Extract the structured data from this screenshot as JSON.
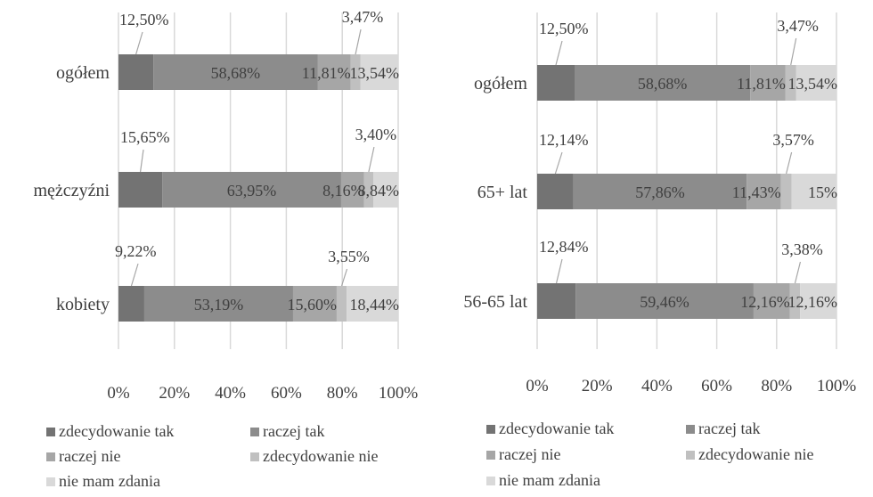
{
  "palette": {
    "zdecydowanie_tak": "#737373",
    "raczej_tak": "#8c8c8c",
    "raczej_nie": "#a6a6a6",
    "zdecydowanie_nie": "#c0c0c0",
    "nie_mam_zdania": "#d9d9d9",
    "grid": "#d9d9d9",
    "text": "#404040"
  },
  "chart_data": [
    {
      "type": "bar",
      "orientation": "horizontal",
      "stacked": true,
      "percent": true,
      "categories": [
        "ogółem",
        "mężczyźni",
        "kobiety"
      ],
      "series": [
        {
          "name": "zdecydowanie tak",
          "values": [
            12.5,
            15.65,
            9.22
          ],
          "labels": [
            "12,50%",
            "15,65%",
            "9,22%"
          ]
        },
        {
          "name": "raczej tak",
          "values": [
            58.68,
            63.95,
            53.19
          ],
          "labels": [
            "58,68%",
            "63,95%",
            "53,19%"
          ]
        },
        {
          "name": "raczej nie",
          "values": [
            11.81,
            8.16,
            15.6
          ],
          "labels": [
            "11,81%",
            "8,16%",
            "15,60%"
          ]
        },
        {
          "name": "zdecydowanie nie",
          "values": [
            3.47,
            3.4,
            3.55
          ],
          "labels": [
            "3,47%",
            "3,40%",
            "3,55%"
          ]
        },
        {
          "name": "nie mam zdania",
          "values": [
            13.54,
            8.84,
            18.44
          ],
          "labels": [
            "13,54%",
            "8,84%",
            "18,44%"
          ]
        }
      ],
      "xlim": [
        0,
        100
      ],
      "xticks": [
        "0%",
        "20%",
        "40%",
        "60%",
        "80%",
        "100%"
      ],
      "grid": true,
      "legend": [
        "zdecydowanie tak",
        "raczej tak",
        "raczej nie",
        "zdecydowanie nie",
        "nie mam zdania"
      ],
      "legend_position": "bottom"
    },
    {
      "type": "bar",
      "orientation": "horizontal",
      "stacked": true,
      "percent": true,
      "categories": [
        "ogółem",
        "65+ lat",
        "56-65 lat"
      ],
      "series": [
        {
          "name": "zdecydowanie tak",
          "values": [
            12.5,
            12.14,
            12.84
          ],
          "labels": [
            "12,50%",
            "12,14%",
            "12,84%"
          ]
        },
        {
          "name": "raczej tak",
          "values": [
            58.68,
            57.86,
            59.46
          ],
          "labels": [
            "58,68%",
            "57,86%",
            "59,46%"
          ]
        },
        {
          "name": "raczej nie",
          "values": [
            11.81,
            11.43,
            12.16
          ],
          "labels": [
            "11,81%",
            "11,43%",
            "12,16%"
          ]
        },
        {
          "name": "zdecydowanie nie",
          "values": [
            3.47,
            3.57,
            3.38
          ],
          "labels": [
            "3,47%",
            "3,57%",
            "3,38%"
          ]
        },
        {
          "name": "nie mam zdania",
          "values": [
            13.54,
            15.0,
            12.16
          ],
          "labels": [
            "13,54%",
            "15%",
            "12,16%"
          ]
        }
      ],
      "xlim": [
        0,
        100
      ],
      "xticks": [
        "0%",
        "20%",
        "40%",
        "60%",
        "80%",
        "100%"
      ],
      "grid": true,
      "legend": [
        "zdecydowanie tak",
        "raczej tak",
        "raczej nie",
        "zdecydowanie nie",
        "nie mam zdania"
      ],
      "legend_position": "bottom"
    }
  ]
}
